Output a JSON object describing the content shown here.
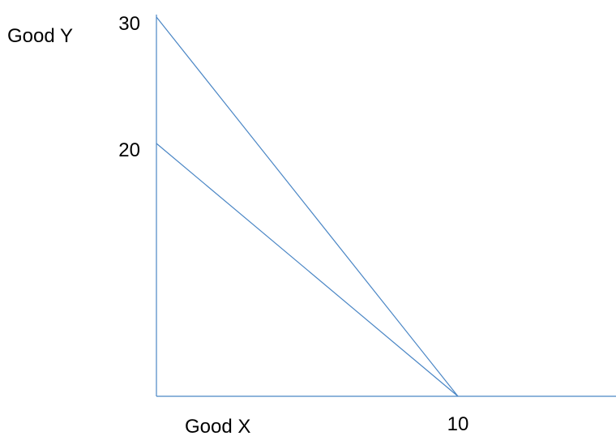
{
  "chart_data": {
    "type": "line",
    "title": "",
    "xlabel": "Good X",
    "ylabel": "Good Y",
    "xlim": [
      0,
      15
    ],
    "ylim": [
      0,
      30
    ],
    "x_ticks": [
      {
        "value": 10,
        "label": "10"
      }
    ],
    "y_ticks": [
      {
        "value": 30,
        "label": "30"
      },
      {
        "value": 20,
        "label": "20"
      }
    ],
    "grid": false,
    "legend": "none",
    "series": [
      {
        "x": [
          0,
          10
        ],
        "y": [
          30,
          0
        ]
      },
      {
        "x": [
          0,
          10
        ],
        "y": [
          20,
          0
        ]
      }
    ]
  },
  "colors": {
    "lines": "#4a86c5",
    "text": "#000000"
  }
}
